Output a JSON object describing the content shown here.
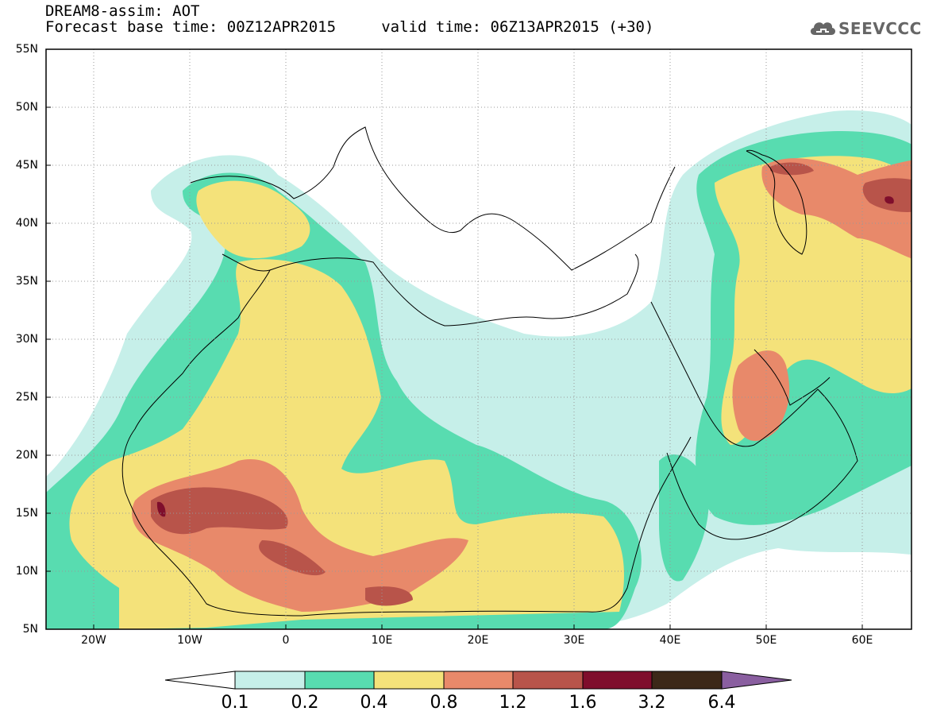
{
  "title": {
    "line1": "DREAM8-assim: AOT",
    "line2": "Forecast base time: 00Z12APR2015     valid time: 06Z13APR2015 (+30)"
  },
  "logo": {
    "text": "SEEVCCC",
    "icon": "cloud-icon"
  },
  "map": {
    "lon_range": [
      -25,
      65
    ],
    "lat_range": [
      5,
      55
    ],
    "grid": "dotted",
    "lat_labels": [
      "55N",
      "50N",
      "45N",
      "40N",
      "35N",
      "30N",
      "25N",
      "20N",
      "15N",
      "10N",
      "5N"
    ],
    "lon_labels": [
      "20W",
      "10W",
      "0",
      "10E",
      "20E",
      "30E",
      "40E",
      "50E",
      "60E"
    ]
  },
  "colorbar": {
    "labels": [
      "0.1",
      "0.2",
      "0.4",
      "0.8",
      "1.2",
      "1.6",
      "3.2",
      "6.4"
    ],
    "colors": [
      "#ffffff",
      "#c6efe9",
      "#58dcb0",
      "#f4e27a",
      "#e8896a",
      "#b8544a",
      "#7f0e2c",
      "#3c2818",
      "#8a5fa0"
    ]
  },
  "colors": {
    "aot_0_1": "#c6efe9",
    "aot_0_2": "#58dcb0",
    "aot_0_4": "#f4e27a",
    "aot_0_8": "#e8896a",
    "aot_1_2": "#b8544a",
    "aot_1_6": "#7f0e2c"
  }
}
